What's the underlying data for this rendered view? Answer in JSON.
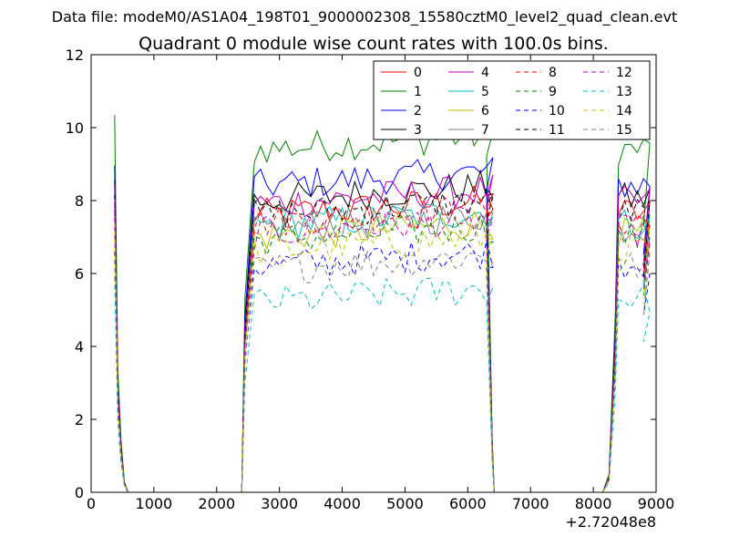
{
  "chart_data": {
    "type": "line",
    "suptitle": "Data file: modeM0/AS1A04_198T01_9000002308_15580cztM0_level2_quad_clean.evt",
    "title": "Quadrant 0 module wise count rates with 100.0s bins.",
    "xlabel": "",
    "ylabel": "",
    "x_offset_label": "+2.72048e8",
    "xlim": [
      0,
      9000
    ],
    "ylim": [
      0,
      12
    ],
    "xticks": [
      "0",
      "1000",
      "2000",
      "3000",
      "4000",
      "5000",
      "6000",
      "7000",
      "8000",
      "9000"
    ],
    "yticks": [
      "0",
      "2",
      "4",
      "6",
      "8",
      "10",
      "12"
    ],
    "legend_position": "top-right",
    "legend_columns": 4,
    "grid": false,
    "series": [
      {
        "name": "0",
        "color": "#ff0000",
        "dash": "solid",
        "level": 7.9
      },
      {
        "name": "1",
        "color": "#008000",
        "dash": "solid",
        "level": 9.7
      },
      {
        "name": "2",
        "color": "#0000ff",
        "dash": "solid",
        "level": 8.7
      },
      {
        "name": "3",
        "color": "#000000",
        "dash": "solid",
        "level": 8.3
      },
      {
        "name": "4",
        "color": "#bf00bf",
        "dash": "solid",
        "level": 8.2
      },
      {
        "name": "5",
        "color": "#00bfbf",
        "dash": "solid",
        "level": 7.6
      },
      {
        "name": "6",
        "color": "#bfbf00",
        "dash": "solid",
        "level": 7.3
      },
      {
        "name": "7",
        "color": "#808080",
        "dash": "solid",
        "level": 7.5
      },
      {
        "name": "8",
        "color": "#ff0000",
        "dash": "dashed",
        "level": 7.7
      },
      {
        "name": "9",
        "color": "#008000",
        "dash": "dashed",
        "level": 7.2
      },
      {
        "name": "10",
        "color": "#0000ff",
        "dash": "dashed",
        "level": 6.5
      },
      {
        "name": "11",
        "color": "#000000",
        "dash": "dashed",
        "level": 7.9
      },
      {
        "name": "12",
        "color": "#bf00bf",
        "dash": "dashed",
        "level": 7.4
      },
      {
        "name": "13",
        "color": "#00bfbf",
        "dash": "dashed",
        "level": 5.5
      },
      {
        "name": "14",
        "color": "#bfbf00",
        "dash": "dashed",
        "level": 6.9
      },
      {
        "name": "15",
        "color": "#808080",
        "dash": "dashed",
        "level": 6.4
      }
    ]
  }
}
